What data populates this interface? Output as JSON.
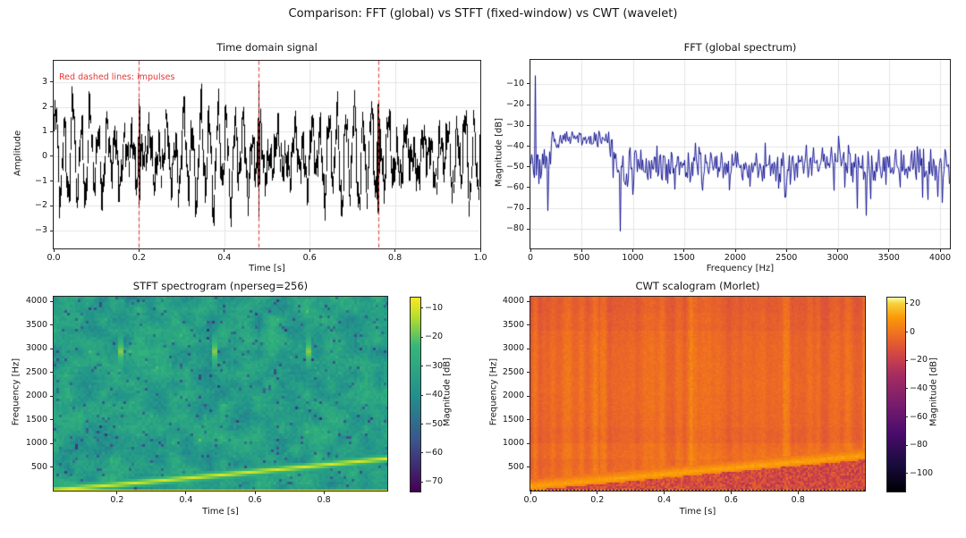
{
  "suptitle": "Comparison: FFT (global) vs STFT (fixed-window) vs CWT (wavelet)",
  "colors": {
    "fft_line": "#00008b",
    "signal_line": "#000000",
    "impulse_line": "#e53935",
    "annotation_text": "#e53935",
    "grid": "#e5e5e5",
    "axes_edge": "#262626",
    "background": "#ffffff"
  },
  "colormaps": {
    "viridis": [
      [
        0,
        "#440154"
      ],
      [
        0.25,
        "#3b528b"
      ],
      [
        0.5,
        "#21918c"
      ],
      [
        0.75,
        "#35b779"
      ],
      [
        0.9,
        "#b5de2b"
      ],
      [
        1,
        "#fde725"
      ]
    ],
    "inferno": [
      [
        0,
        "#000004"
      ],
      [
        0.15,
        "#1b0c41"
      ],
      [
        0.3,
        "#4a0c6b"
      ],
      [
        0.45,
        "#781c6d"
      ],
      [
        0.6,
        "#a52c60"
      ],
      [
        0.7,
        "#cf4446"
      ],
      [
        0.8,
        "#ed6925"
      ],
      [
        0.9,
        "#fb9b06"
      ],
      [
        0.97,
        "#f7d13d"
      ],
      [
        1,
        "#fcffa4"
      ]
    ]
  },
  "chart_data": {
    "time_domain": {
      "type": "line",
      "title": "Time domain signal",
      "xlabel": "Time [s]",
      "ylabel": "Amplitude",
      "xlim": [
        0.0,
        1.0
      ],
      "ylim": [
        -3.7,
        3.9
      ],
      "grid": true,
      "xticks": [
        {
          "v": 0.0,
          "l": "0.0"
        },
        {
          "v": 0.2,
          "l": "0.2"
        },
        {
          "v": 0.4,
          "l": "0.4"
        },
        {
          "v": 0.6,
          "l": "0.6"
        },
        {
          "v": 0.8,
          "l": "0.8"
        },
        {
          "v": 1.0,
          "l": "1.0"
        }
      ],
      "yticks": [
        {
          "v": 3,
          "l": "3"
        },
        {
          "v": 2,
          "l": "2"
        },
        {
          "v": 1,
          "l": "1"
        },
        {
          "v": 0,
          "l": "0"
        },
        {
          "v": -1,
          "l": "−1"
        },
        {
          "v": -2,
          "l": "−2"
        },
        {
          "v": -3,
          "l": "−3"
        }
      ],
      "annotation": {
        "text": "Red dashed lines: impulses"
      },
      "impulse_times": [
        0.2,
        0.48,
        0.76
      ],
      "impulse_peaks": [
        [
          2.95,
          -2.6
        ],
        [
          3.1,
          -2.5
        ],
        [
          2.9,
          -3.15
        ]
      ],
      "signal_summary": "Dense multi-tone oscillation, typical amplitude ±2.5, impulse spikes at dashed lines"
    },
    "fft": {
      "type": "line",
      "title": "FFT (global spectrum)",
      "xlabel": "Frequency [Hz]",
      "ylabel": "Magnitude [dB]",
      "xlim": [
        0,
        4096
      ],
      "ylim": [
        -89,
        2
      ],
      "grid": true,
      "xticks": [
        {
          "v": 0,
          "l": "0"
        },
        {
          "v": 500,
          "l": "500"
        },
        {
          "v": 1000,
          "l": "1000"
        },
        {
          "v": 1500,
          "l": "1500"
        },
        {
          "v": 2000,
          "l": "2000"
        },
        {
          "v": 2500,
          "l": "2500"
        },
        {
          "v": 3000,
          "l": "3000"
        },
        {
          "v": 3500,
          "l": "3500"
        },
        {
          "v": 4000,
          "l": "4000"
        }
      ],
      "yticks": [
        {
          "v": -10,
          "l": "−10"
        },
        {
          "v": -20,
          "l": "−20"
        },
        {
          "v": -30,
          "l": "−30"
        },
        {
          "v": -40,
          "l": "−40"
        },
        {
          "v": -50,
          "l": "−50"
        },
        {
          "v": -60,
          "l": "−60"
        },
        {
          "v": -70,
          "l": "−70"
        },
        {
          "v": -80,
          "l": "−80"
        }
      ],
      "features": {
        "tone_peak": {
          "freq_hz": 45,
          "level_db": -6
        },
        "elevated_band": {
          "range_hz": [
            200,
            800
          ],
          "level_db": -37
        },
        "noise_floor_db": -50,
        "broad_bump": {
          "freq_hz": 3000,
          "gain_db": 4.5
        },
        "deep_notch": {
          "freq_hz": 870,
          "level_db": -81
        }
      }
    },
    "stft": {
      "type": "heatmap",
      "title": "STFT spectrogram (nperseg=256)",
      "xlabel": "Time [s]",
      "ylabel": "Frequency [Hz]",
      "xlim": [
        0.016,
        0.984
      ],
      "ylim": [
        0,
        4096
      ],
      "colormap": "viridis",
      "xticks": [
        {
          "v": 0.2,
          "l": "0.2"
        },
        {
          "v": 0.4,
          "l": "0.4"
        },
        {
          "v": 0.6,
          "l": "0.6"
        },
        {
          "v": 0.8,
          "l": "0.8"
        }
      ],
      "yticks": [
        {
          "v": 500,
          "l": "500"
        },
        {
          "v": 1000,
          "l": "1000"
        },
        {
          "v": 1500,
          "l": "1500"
        },
        {
          "v": 2000,
          "l": "2000"
        },
        {
          "v": 2500,
          "l": "2500"
        },
        {
          "v": 3000,
          "l": "3000"
        },
        {
          "v": 3500,
          "l": "3500"
        },
        {
          "v": 4000,
          "l": "4000"
        }
      ],
      "colorbar": {
        "label": "Magnitude [dB]",
        "vmin": -73,
        "vmax": -6,
        "ticks": [
          {
            "v": -10,
            "l": "−10"
          },
          {
            "v": -20,
            "l": "−20"
          },
          {
            "v": -30,
            "l": "−30"
          },
          {
            "v": -40,
            "l": "−40"
          },
          {
            "v": -50,
            "l": "−50"
          },
          {
            "v": -60,
            "l": "−60"
          },
          {
            "v": -70,
            "l": "−70"
          }
        ]
      },
      "features": {
        "background_db": -34,
        "rising_chirp": {
          "f_start_hz": 55,
          "f_end_hz": 710,
          "level_db": -9
        },
        "constant_tone_hz": 50,
        "impulse_streaks": {
          "times_s": [
            0.2,
            0.48,
            0.76
          ],
          "center_hz": 2950,
          "level_db": -13
        }
      }
    },
    "cwt": {
      "type": "heatmap",
      "title": "CWT scalogram (Morlet)",
      "xlabel": "Time [s]",
      "ylabel": "Frequency [Hz]",
      "xlim": [
        0,
        1
      ],
      "ylim": [
        0,
        4096
      ],
      "colormap": "inferno",
      "xticks": [
        {
          "v": 0.0,
          "l": "0.0"
        },
        {
          "v": 0.2,
          "l": "0.2"
        },
        {
          "v": 0.4,
          "l": "0.4"
        },
        {
          "v": 0.6,
          "l": "0.6"
        },
        {
          "v": 0.8,
          "l": "0.8"
        }
      ],
      "yticks": [
        {
          "v": 500,
          "l": "500"
        },
        {
          "v": 1000,
          "l": "1000"
        },
        {
          "v": 1500,
          "l": "1500"
        },
        {
          "v": 2000,
          "l": "2000"
        },
        {
          "v": 2500,
          "l": "2500"
        },
        {
          "v": 3000,
          "l": "3000"
        },
        {
          "v": 3500,
          "l": "3500"
        },
        {
          "v": 4000,
          "l": "4000"
        }
      ],
      "colorbar": {
        "label": "Magnitude [dB]",
        "vmin": -112,
        "vmax": 25,
        "ticks": [
          {
            "v": 20,
            "l": "20"
          },
          {
            "v": 0,
            "l": "0"
          },
          {
            "v": -20,
            "l": "−20"
          },
          {
            "v": -40,
            "l": "−40"
          },
          {
            "v": -60,
            "l": "−60"
          },
          {
            "v": -80,
            "l": "−80"
          },
          {
            "v": -100,
            "l": "−100"
          }
        ]
      },
      "features": {
        "background_db": 0,
        "rising_chirp": {
          "f_start_hz": 55,
          "f_end_hz": 700,
          "ridge_db": 14
        },
        "constant_tone_hz": 50,
        "impulse_streak_times_s": [
          0.2,
          0.48,
          0.76
        ],
        "vertical_streak_texture": true,
        "dark_mottle_below_chirp_db": -14
      }
    }
  }
}
